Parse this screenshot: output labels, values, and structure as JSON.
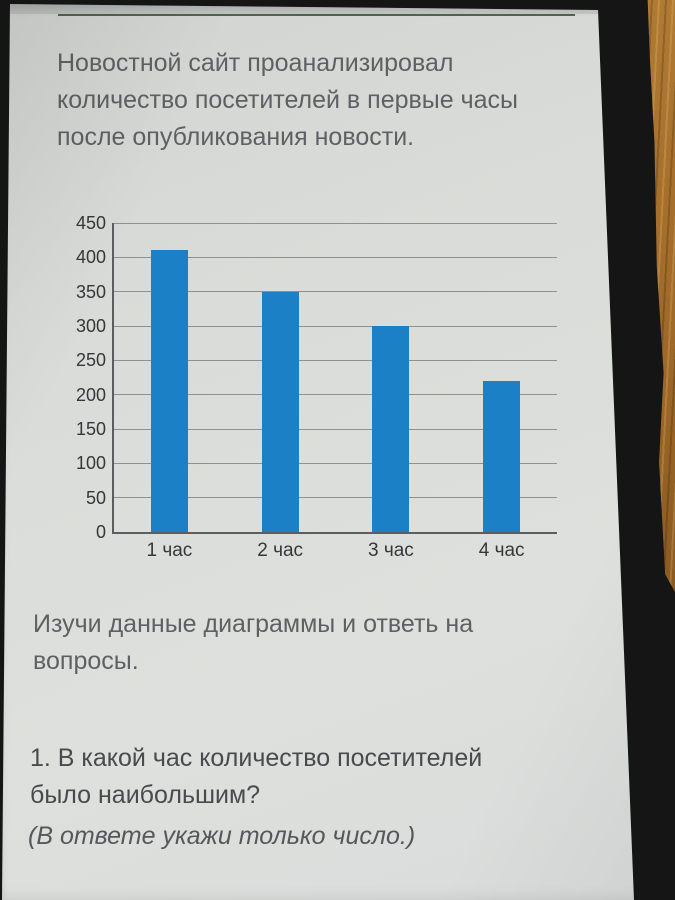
{
  "theme": {
    "frame_color": "#151515",
    "wood_color": "#a66f2c",
    "screen_bg": "#d9dbd8",
    "top_rule_color": "#51624e",
    "text_color": "#5d6163",
    "question_text_color": "#474b4d",
    "note_text_color": "#54585a",
    "bar_color": "#1b80c6",
    "grid_color": "#8e9192",
    "axis_color": "#5b5e60",
    "tick_label_color": "#34383a"
  },
  "intro": {
    "lines": [
      "Новостной сайт проанализировал",
      "количество посетителей в первые часы",
      "после опубликования новости."
    ]
  },
  "chart_data": {
    "type": "bar",
    "categories": [
      "1 час",
      "2 час",
      "3 час",
      "4 час"
    ],
    "values": [
      410,
      350,
      300,
      220
    ],
    "title": "",
    "xlabel": "",
    "ylabel": "",
    "ylim": [
      0,
      450
    ],
    "yticks": [
      0,
      50,
      100,
      150,
      200,
      250,
      300,
      350,
      400,
      450
    ],
    "grid": true,
    "legend": null,
    "bar_color": "#1b80c6"
  },
  "instruction": {
    "lines": [
      "Изучи данные диаграммы и ответь на",
      "вопросы."
    ]
  },
  "question": {
    "lines": [
      "1. В какой час количество посетителей",
      "было наибольшим?"
    ],
    "note": "(В ответе укажи только число.)"
  }
}
